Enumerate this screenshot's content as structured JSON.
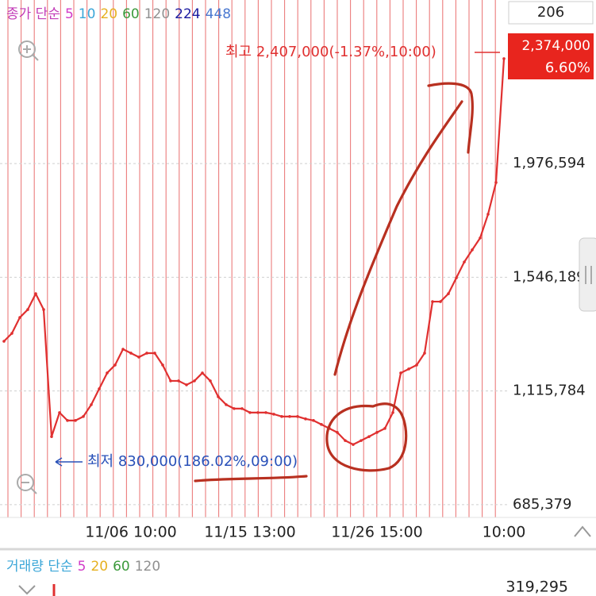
{
  "chart_data": {
    "type": "line",
    "legend_prefix": "종가 단순",
    "ma_periods": [
      {
        "label": 5,
        "color": "#d23cc8"
      },
      {
        "label": 10,
        "color": "#3aa6d8"
      },
      {
        "label": 20,
        "color": "#e6b020"
      },
      {
        "label": 60,
        "color": "#3c9a3c"
      },
      {
        "label": 120,
        "color": "#909090"
      },
      {
        "label": 224,
        "color": "#1a1aa0"
      },
      {
        "label": 448,
        "color": "#4a78d0"
      }
    ],
    "counter": "206",
    "price_tag": "2,374,000",
    "change_tag": "6.60%",
    "high_label": "최고 2,407,000(-1.37%,10:00)",
    "low_label": "최저 830,000(186.02%,09:00)",
    "categories": [
      null,
      null,
      null,
      null,
      null,
      null,
      null,
      null,
      null,
      null,
      null,
      null,
      null,
      null,
      null,
      null,
      "11/06 10:00",
      null,
      null,
      null,
      null,
      null,
      null,
      null,
      null,
      null,
      null,
      null,
      null,
      null,
      null,
      "11/15 13:00",
      null,
      null,
      null,
      null,
      null,
      null,
      null,
      null,
      null,
      null,
      null,
      null,
      null,
      null,
      null,
      "11/26 15:00",
      null,
      null,
      null,
      null,
      null,
      null,
      null,
      null,
      null,
      null,
      null,
      null,
      null,
      null,
      null,
      "10:00"
    ],
    "values": [
      1304000,
      1334000,
      1394000,
      1424000,
      1484000,
      1424000,
      943000,
      1034000,
      1004000,
      1004000,
      1019000,
      1064000,
      1124000,
      1184000,
      1214000,
      1274000,
      1259000,
      1244000,
      1259000,
      1259000,
      1214000,
      1154000,
      1154000,
      1139000,
      1154000,
      1184000,
      1154000,
      1094000,
      1064000,
      1049000,
      1049000,
      1034000,
      1034000,
      1034000,
      1028000,
      1019000,
      1019000,
      1019000,
      1010000,
      1004000,
      989000,
      974000,
      959000,
      928000,
      913000,
      928000,
      943000,
      959000,
      974000,
      1034000,
      1184000,
      1199000,
      1214000,
      1259000,
      1454000,
      1454000,
      1484000,
      1544000,
      1604000,
      1650000,
      1695000,
      1785000,
      1905000,
      2374000
    ],
    "color": "#e03030",
    "ylim": [
      637000,
      2596000
    ],
    "yticks": [
      {
        "value": 685379,
        "label": "685,379"
      },
      {
        "value": 1115784,
        "label": "1,115,784"
      },
      {
        "value": 1546189,
        "label": "1,546,189"
      },
      {
        "value": 1976594,
        "label": "1,976,594"
      }
    ],
    "grid": true,
    "volume_legend_prefix": "거래량 단순",
    "volume_ma_periods": [
      {
        "label": 5,
        "color": "#d23cc8"
      },
      {
        "label": 20,
        "color": "#e6b020"
      },
      {
        "label": 60,
        "color": "#3c9a3c"
      },
      {
        "label": 120,
        "color": "#909090"
      }
    ],
    "volume_label": "319,295"
  }
}
